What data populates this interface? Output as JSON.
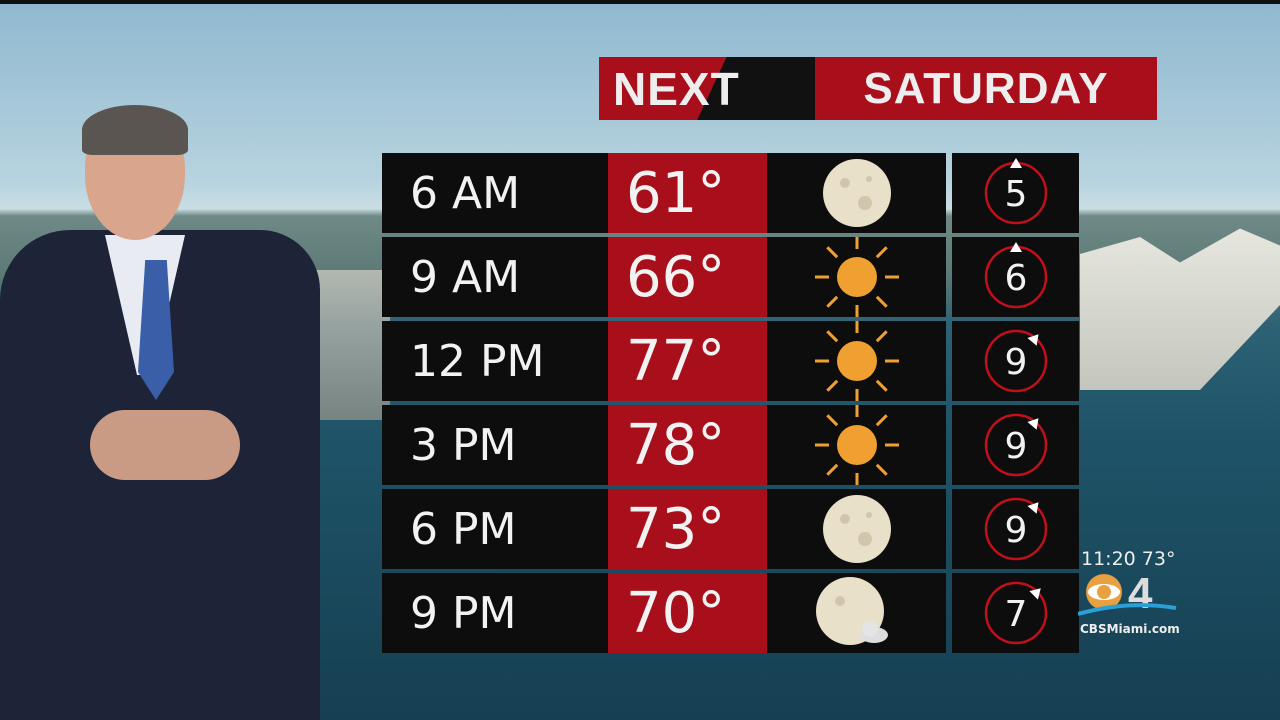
{
  "banner": {
    "brand": "NEXT",
    "day": "SATURDAY"
  },
  "rows": [
    {
      "time": "6 AM",
      "temp": "61°",
      "icon": "moon",
      "uv": "5"
    },
    {
      "time": "9 AM",
      "temp": "66°",
      "icon": "sun",
      "uv": "6"
    },
    {
      "time": "12 PM",
      "temp": "77°",
      "icon": "sun",
      "uv": "9"
    },
    {
      "time": "3 PM",
      "temp": "78°",
      "icon": "sun",
      "uv": "9"
    },
    {
      "time": "6 PM",
      "temp": "73°",
      "icon": "moon",
      "uv": "9"
    },
    {
      "time": "9 PM",
      "temp": "70°",
      "icon": "moon-cloud",
      "uv": "7"
    }
  ],
  "bug": {
    "time_temp": "11:20  73°",
    "logo": "CBS4",
    "site": "CBSMiami.com"
  },
  "colors": {
    "red": "#a80f1a",
    "dial": "#c0101c",
    "sun": "#f0a030",
    "moon": "#e8e0c8"
  }
}
